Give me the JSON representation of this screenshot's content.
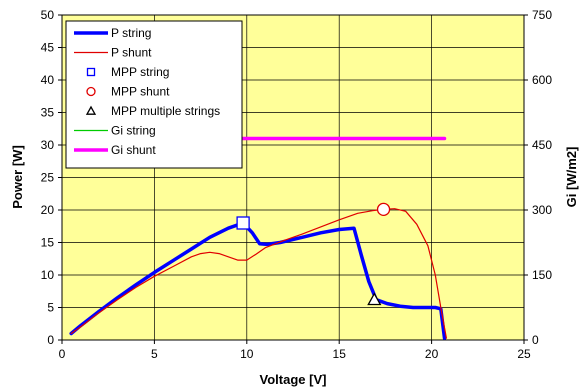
{
  "chart_data": {
    "type": "line",
    "xlabel": "Voltage [V]",
    "ylabel": "Power [W]",
    "y2label": "Gi [W/m2]",
    "xlim": [
      0,
      25
    ],
    "ylim": [
      0,
      50
    ],
    "y2lim": [
      0,
      750
    ],
    "xticks": [
      "0",
      "5",
      "10",
      "15",
      "20",
      "25"
    ],
    "yticks": [
      "0",
      "5",
      "10",
      "15",
      "20",
      "25",
      "30",
      "35",
      "40",
      "45",
      "50"
    ],
    "y2ticks": [
      "0",
      "150",
      "300",
      "450",
      "600",
      "750"
    ],
    "grid": true,
    "legend_position": "top-left",
    "plot_background": "#ffff99",
    "series": [
      {
        "name": "P string",
        "axis": "left",
        "color": "#0000ff",
        "style": "thick-line",
        "x": [
          0.5,
          1,
          2,
          3,
          4,
          5,
          6,
          7,
          8,
          9,
          9.8,
          10.3,
          10.7,
          11.1,
          11.8,
          13,
          14,
          15,
          15.8,
          16.2,
          16.6,
          17,
          17.6,
          18.3,
          19,
          19.6,
          20.2,
          20.5,
          20.7
        ],
        "y": [
          1,
          2.2,
          4.4,
          6.5,
          8.5,
          10.4,
          12.2,
          14,
          15.8,
          17.2,
          18,
          16.5,
          14.8,
          14.7,
          15,
          15.8,
          16.5,
          17,
          17.2,
          13,
          9,
          6.2,
          5.6,
          5.2,
          5,
          5,
          5,
          4.8,
          0.3
        ]
      },
      {
        "name": "P shunt",
        "axis": "left",
        "color": "#e00000",
        "style": "thin-line",
        "x": [
          0.5,
          1,
          2,
          3,
          4,
          5,
          6,
          7,
          7.5,
          8,
          8.5,
          9,
          9.5,
          10,
          10.5,
          11,
          12,
          13,
          14,
          15,
          16,
          16.8,
          17.4,
          18,
          18.6,
          19.2,
          19.8,
          20.2,
          20.5,
          20.8
        ],
        "y": [
          1,
          2,
          4.2,
          6.2,
          8.1,
          9.8,
          11.3,
          12.8,
          13.3,
          13.5,
          13.3,
          12.8,
          12.3,
          12.3,
          13.2,
          14.2,
          15.3,
          16.3,
          17.4,
          18.5,
          19.5,
          19.9,
          20.1,
          20.2,
          19.8,
          17.8,
          14.5,
          10,
          5,
          0.3
        ]
      },
      {
        "name": "MPP string",
        "axis": "left",
        "color": "#0000ff",
        "marker": "square",
        "x": [
          9.8
        ],
        "y": [
          18
        ]
      },
      {
        "name": "MPP shunt",
        "axis": "left",
        "color": "#e00000",
        "marker": "circle",
        "x": [
          17.4
        ],
        "y": [
          20.1
        ]
      },
      {
        "name": "MPP multiple strings",
        "axis": "left",
        "color": "#000000",
        "marker": "triangle",
        "x": [
          16.9
        ],
        "y": [
          6.2
        ]
      },
      {
        "name": "Gi string",
        "axis": "right",
        "color": "#00cc00",
        "style": "thin-line",
        "x": [],
        "y": []
      },
      {
        "name": "Gi shunt",
        "axis": "right",
        "color": "#ff00ff",
        "style": "thick-line",
        "x": [
          9.5,
          10,
          11,
          12,
          13,
          14,
          15,
          16,
          17,
          18,
          19,
          20,
          20.7
        ],
        "y": [
          465,
          465,
          465,
          465,
          465,
          465,
          465,
          465,
          465,
          465,
          465,
          465,
          465
        ]
      }
    ]
  }
}
